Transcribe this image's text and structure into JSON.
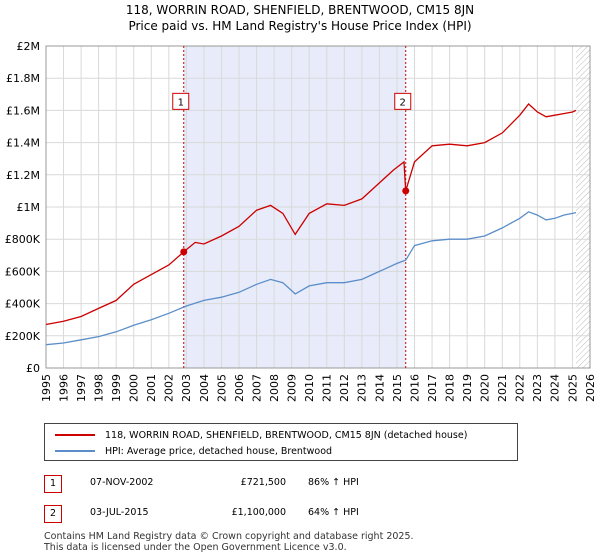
{
  "title_line1": "118, WORRIN ROAD, SHENFIELD, BRENTWOOD, CM15 8JN",
  "title_line2": "Price paid vs. HM Land Registry's House Price Index (HPI)",
  "colors": {
    "property_line": "#cc0000",
    "hpi_line": "#5b8ec9",
    "sale_shade": "#e8ecfa",
    "grid": "#d9d9d9"
  },
  "chart_data": {
    "type": "line",
    "x_ticks": [
      "1995",
      "1996",
      "1997",
      "1998",
      "1999",
      "2000",
      "2001",
      "2002",
      "2003",
      "2004",
      "2005",
      "2006",
      "2007",
      "2008",
      "2009",
      "2010",
      "2011",
      "2012",
      "2013",
      "2014",
      "2015",
      "2016",
      "2017",
      "2018",
      "2019",
      "2020",
      "2021",
      "2022",
      "2023",
      "2024",
      "2025",
      "2026"
    ],
    "y_ticks": [
      "£0",
      "£200K",
      "£400K",
      "£600K",
      "£800K",
      "£1M",
      "£1.2M",
      "£1.4M",
      "£1.6M",
      "£1.8M",
      "£2M"
    ],
    "xlim": [
      1995,
      2026
    ],
    "ylim": [
      0,
      2000000
    ],
    "grid": true,
    "shaded_region": [
      2002.85,
      2015.5
    ],
    "future_hatch_from": 2025.2,
    "series": [
      {
        "name": "118, WORRIN ROAD, SHENFIELD, BRENTWOOD, CM15 8JN (detached house)",
        "color": "#cc0000",
        "x": [
          1995.0,
          1996.0,
          1997.0,
          1998.0,
          1999.0,
          2000.0,
          2001.0,
          2002.0,
          2002.85,
          2003.5,
          2004.0,
          2005.0,
          2006.0,
          2007.0,
          2007.8,
          2008.5,
          2009.2,
          2010.0,
          2011.0,
          2012.0,
          2013.0,
          2014.0,
          2014.8,
          2015.4,
          2015.5,
          2016.0,
          2017.0,
          2018.0,
          2019.0,
          2020.0,
          2021.0,
          2022.0,
          2022.5,
          2023.0,
          2023.5,
          2024.0,
          2024.5,
          2025.0,
          2025.2
        ],
        "y": [
          270000,
          290000,
          320000,
          370000,
          420000,
          520000,
          580000,
          640000,
          721500,
          780000,
          770000,
          820000,
          880000,
          980000,
          1010000,
          960000,
          830000,
          960000,
          1020000,
          1010000,
          1050000,
          1150000,
          1230000,
          1280000,
          1100000,
          1280000,
          1380000,
          1390000,
          1380000,
          1400000,
          1460000,
          1570000,
          1640000,
          1590000,
          1560000,
          1570000,
          1580000,
          1590000,
          1600000
        ]
      },
      {
        "name": "HPI: Average price, detached house, Brentwood",
        "color": "#5b8ec9",
        "x": [
          1995.0,
          1996.0,
          1997.0,
          1998.0,
          1999.0,
          2000.0,
          2001.0,
          2002.0,
          2003.0,
          2004.0,
          2005.0,
          2006.0,
          2007.0,
          2007.8,
          2008.5,
          2009.2,
          2010.0,
          2011.0,
          2012.0,
          2013.0,
          2014.0,
          2015.0,
          2015.5,
          2016.0,
          2017.0,
          2018.0,
          2019.0,
          2020.0,
          2021.0,
          2022.0,
          2022.5,
          2023.0,
          2023.5,
          2024.0,
          2024.5,
          2025.0,
          2025.2
        ],
        "y": [
          145000,
          155000,
          175000,
          195000,
          225000,
          265000,
          300000,
          340000,
          385000,
          420000,
          440000,
          470000,
          520000,
          550000,
          530000,
          460000,
          510000,
          530000,
          530000,
          550000,
          600000,
          650000,
          670000,
          760000,
          790000,
          800000,
          800000,
          820000,
          870000,
          930000,
          970000,
          950000,
          920000,
          930000,
          950000,
          960000,
          965000
        ]
      }
    ],
    "annotations": [
      {
        "label": "1",
        "x": 2002.85,
        "y": 721500
      },
      {
        "label": "2",
        "x": 2015.5,
        "y": 1100000
      }
    ]
  },
  "legend": {
    "property_label": "118, WORRIN ROAD, SHENFIELD, BRENTWOOD, CM15 8JN (detached house)",
    "hpi_label": "HPI: Average price, detached house, Brentwood"
  },
  "sales": [
    {
      "num": "1",
      "date": "07-NOV-2002",
      "price": "£721,500",
      "hpi": "86% ↑ HPI"
    },
    {
      "num": "2",
      "date": "03-JUL-2015",
      "price": "£1,100,000",
      "hpi": "64% ↑ HPI"
    }
  ],
  "footer_line1": "Contains HM Land Registry data © Crown copyright and database right 2025.",
  "footer_line2": "This data is licensed under the Open Government Licence v3.0."
}
